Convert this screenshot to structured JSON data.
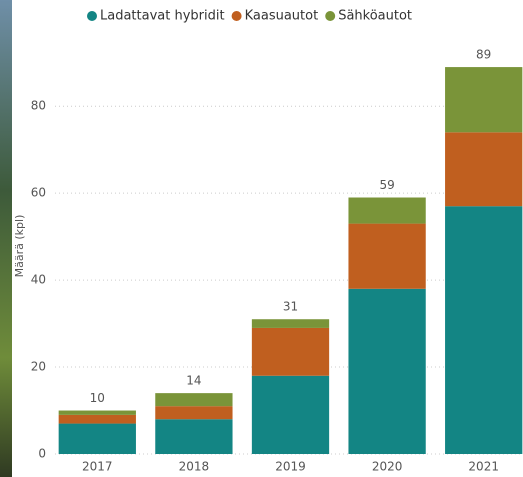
{
  "chart_data": {
    "type": "stacked_bar",
    "y_label": "Määrä (kpl)",
    "categories": [
      "2017",
      "2018",
      "2019",
      "2020",
      "2021"
    ],
    "series": [
      {
        "name": "Ladattavat hybridit",
        "color": "#138584",
        "values": [
          7,
          8,
          18,
          38,
          57
        ]
      },
      {
        "name": "Kaasuautot",
        "color": "#c05f1f",
        "values": [
          2,
          3,
          11,
          15,
          17
        ]
      },
      {
        "name": "Sähköautot",
        "color": "#7a9439",
        "values": [
          1,
          3,
          2,
          6,
          15
        ]
      }
    ],
    "totals": [
      10,
      14,
      31,
      59,
      89
    ],
    "ylim": [
      0,
      95
    ],
    "yticks": [
      0,
      20,
      40,
      60,
      80
    ],
    "grid": true,
    "legend": "top"
  }
}
